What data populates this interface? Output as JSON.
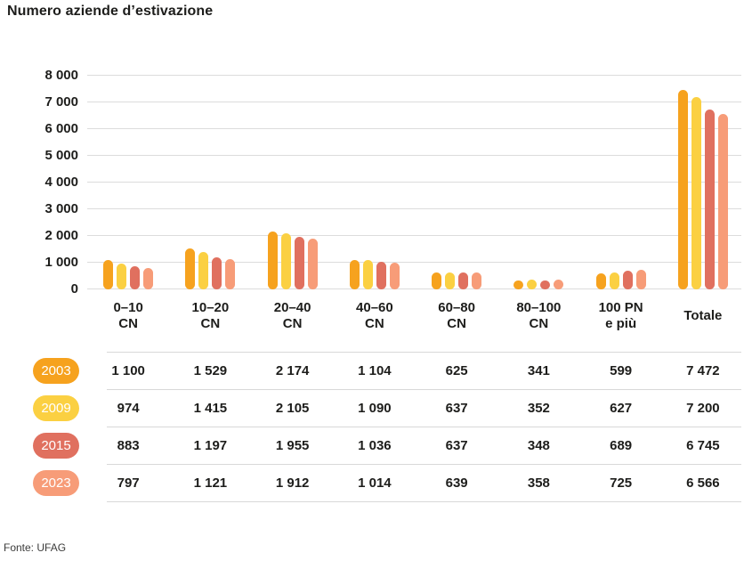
{
  "title": "Numero aziende d’estivazione",
  "source": "Fonte: UFAG",
  "colors": {
    "background": "#ffffff",
    "grid": "#dcdcdc",
    "row_line": "#d8d8d8",
    "text": "#1d1d1b"
  },
  "chart_data": {
    "type": "bar",
    "title": "Numero aziende d’estivazione",
    "categories": [
      "0–10 CN",
      "10–20 CN",
      "20–40 CN",
      "40–60 CN",
      "60–80 CN",
      "80–100 CN",
      "100 PN e più",
      "Totale"
    ],
    "category_label_lines": [
      [
        "0–10",
        "CN"
      ],
      [
        "10–20",
        "CN"
      ],
      [
        "20–40",
        "CN"
      ],
      [
        "40–60",
        "CN"
      ],
      [
        "60–80",
        "CN"
      ],
      [
        "80–100",
        "CN"
      ],
      [
        "100 PN",
        "e più"
      ],
      [
        "Totale"
      ]
    ],
    "series": [
      {
        "name": "2003",
        "color": "#f6a21e",
        "values": [
          1100,
          1529,
          2174,
          1104,
          625,
          341,
          599,
          7472
        ]
      },
      {
        "name": "2009",
        "color": "#fbd042",
        "values": [
          974,
          1415,
          2105,
          1090,
          637,
          352,
          627,
          7200
        ]
      },
      {
        "name": "2015",
        "color": "#e0705f",
        "values": [
          883,
          1197,
          1955,
          1036,
          637,
          348,
          689,
          6745
        ]
      },
      {
        "name": "2023",
        "color": "#f79c78",
        "values": [
          797,
          1121,
          1912,
          1014,
          639,
          358,
          725,
          6566
        ]
      }
    ],
    "xlabel": "",
    "ylabel": "",
    "ylim": [
      0,
      8000
    ],
    "ytick_step": 1000,
    "grid": true,
    "legend_position": "left of table rows below chart",
    "number_format": "space thousands separator"
  }
}
